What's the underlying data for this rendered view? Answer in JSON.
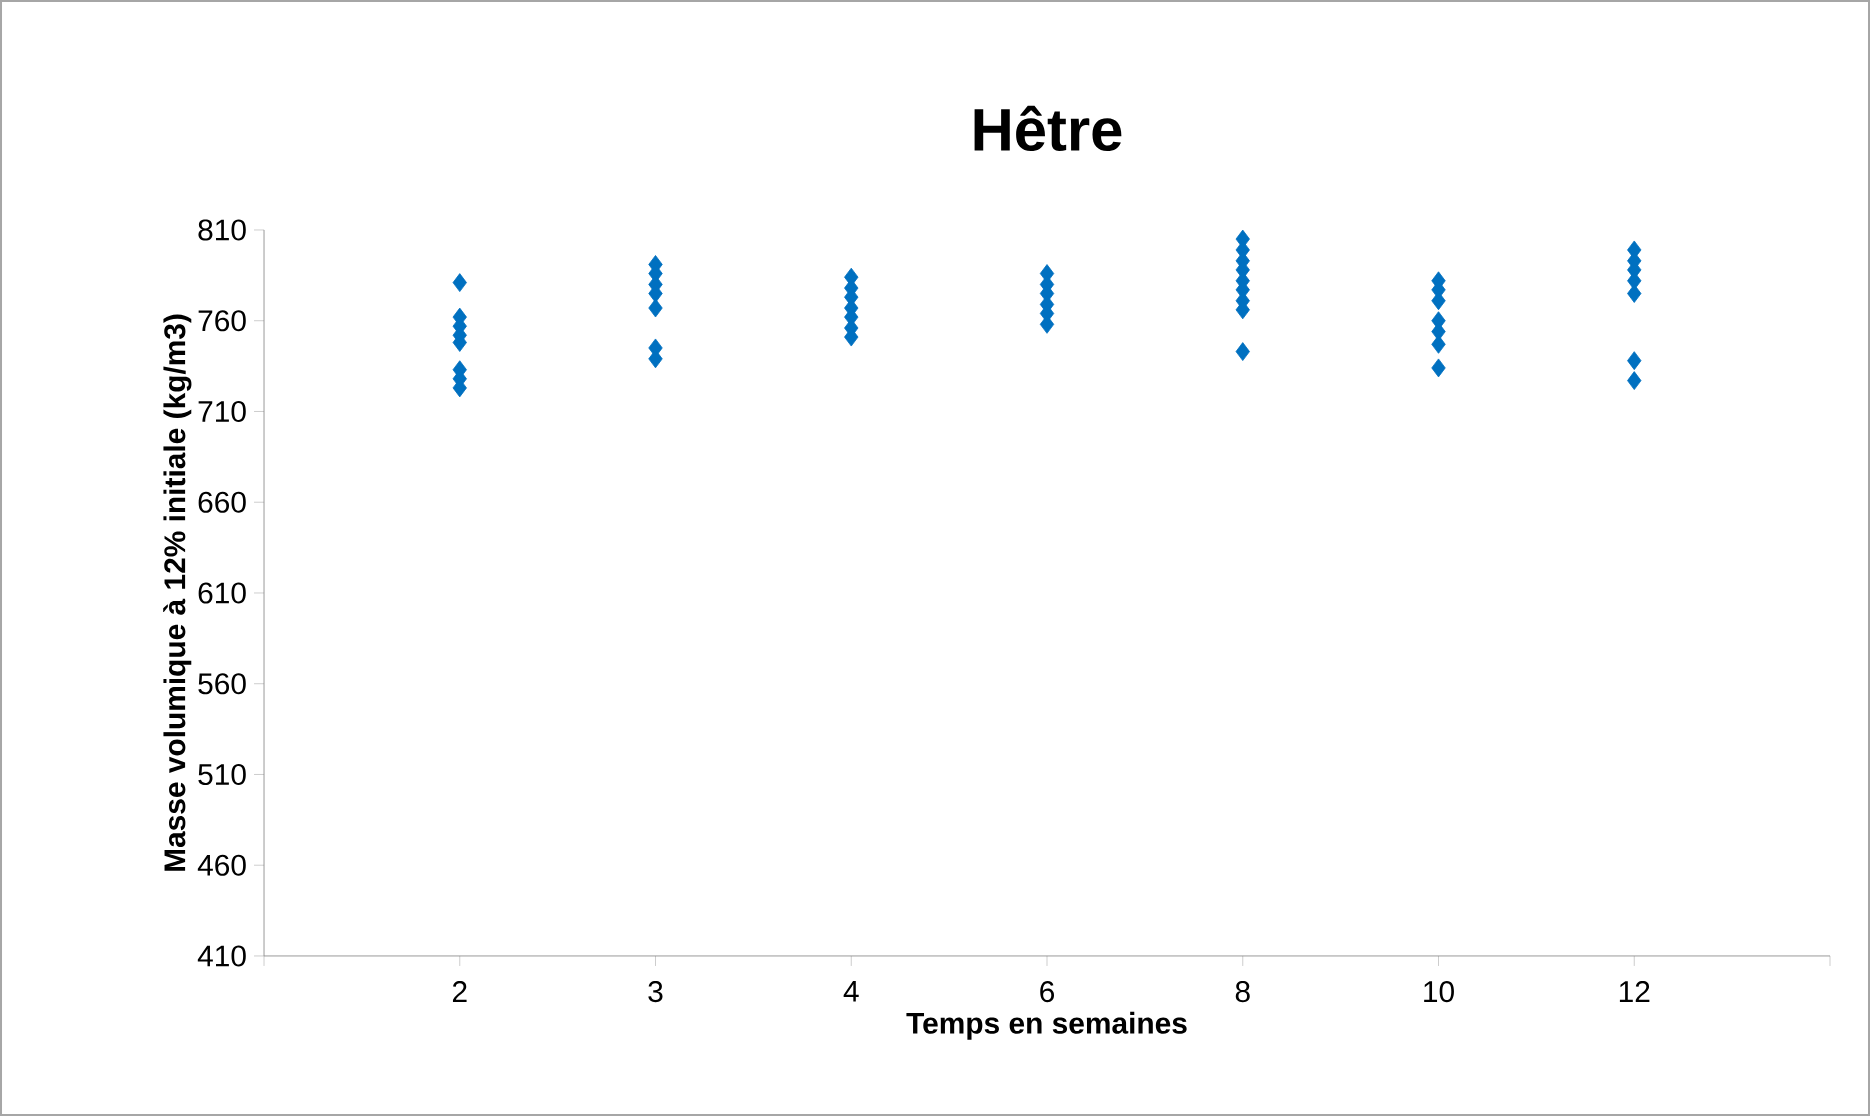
{
  "chart_data": {
    "type": "scatter",
    "title": "Hêtre",
    "xlabel": "Temps en semaines",
    "ylabel": "Masse volumique à 12% initiale (kg/m3)",
    "categories": [
      "2",
      "3",
      "4",
      "6",
      "8",
      "10",
      "12"
    ],
    "ylim": [
      410,
      810
    ],
    "yticks": [
      410,
      460,
      510,
      560,
      610,
      660,
      710,
      760,
      810
    ],
    "marker": "diamond",
    "grid": false,
    "series": [
      {
        "color": "#0070c0",
        "x": [
          "2",
          "2",
          "2",
          "2",
          "2",
          "2",
          "2",
          "2",
          "3",
          "3",
          "3",
          "3",
          "3",
          "3",
          "3",
          "4",
          "4",
          "4",
          "4",
          "4",
          "4",
          "4",
          "6",
          "6",
          "6",
          "6",
          "6",
          "6",
          "8",
          "8",
          "8",
          "8",
          "8",
          "8",
          "8",
          "8",
          "8",
          "10",
          "10",
          "10",
          "10",
          "10",
          "10",
          "10",
          "12",
          "12",
          "12",
          "12",
          "12",
          "12",
          "12"
        ],
        "values": [
          781,
          762,
          757,
          752,
          748,
          733,
          728,
          723,
          791,
          786,
          780,
          775,
          767,
          745,
          739,
          784,
          778,
          773,
          767,
          762,
          756,
          751,
          786,
          780,
          775,
          769,
          764,
          758,
          805,
          799,
          793,
          788,
          782,
          777,
          771,
          766,
          743,
          782,
          777,
          771,
          760,
          754,
          747,
          734,
          799,
          793,
          788,
          782,
          775,
          738,
          727
        ]
      }
    ]
  }
}
